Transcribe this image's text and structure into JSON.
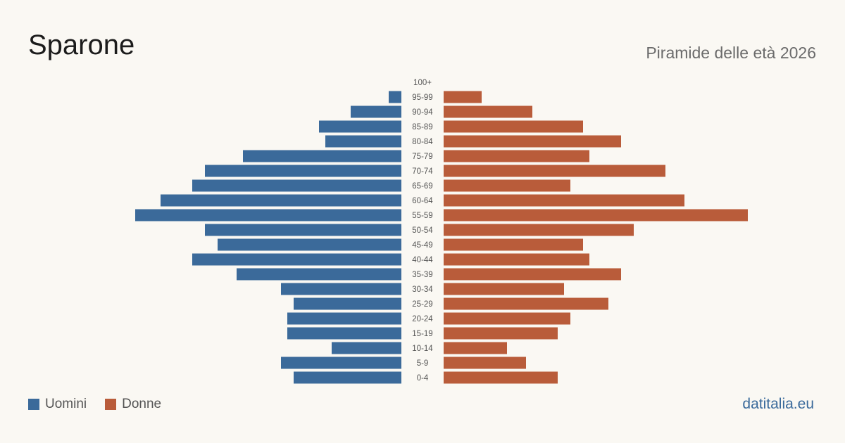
{
  "header": {
    "title": "Sparone",
    "subtitle": "Piramide delle età 2026"
  },
  "footer": {
    "brand": "datitalia.eu"
  },
  "colors": {
    "men": "#3b6a9a",
    "women": "#b95c3a"
  },
  "chart_data": {
    "type": "bar",
    "orientation": "horizontal-pyramid",
    "title": "Sparone",
    "subtitle": "Piramide delle età 2026",
    "categories": [
      "100+",
      "95-99",
      "90-94",
      "85-89",
      "80-84",
      "75-79",
      "70-74",
      "65-69",
      "60-64",
      "55-59",
      "50-54",
      "45-49",
      "40-44",
      "35-39",
      "30-34",
      "25-29",
      "20-24",
      "15-19",
      "10-14",
      "5-9",
      "0-4"
    ],
    "series": [
      {
        "name": "Uomini",
        "values": [
          0,
          2,
          8,
          13,
          12,
          25,
          31,
          33,
          38,
          42,
          31,
          29,
          33,
          26,
          19,
          17,
          18,
          18,
          11,
          19,
          17
        ]
      },
      {
        "name": "Donne",
        "values": [
          0,
          6,
          14,
          22,
          28,
          23,
          35,
          20,
          38,
          48,
          30,
          22,
          23,
          28,
          19,
          26,
          20,
          18,
          10,
          13,
          18
        ]
      }
    ],
    "legend": [
      {
        "label": "Uomini",
        "color": "#3b6a9a"
      },
      {
        "label": "Donne",
        "color": "#b95c3a"
      }
    ],
    "legend_position": "bottom-left",
    "grid": false
  }
}
